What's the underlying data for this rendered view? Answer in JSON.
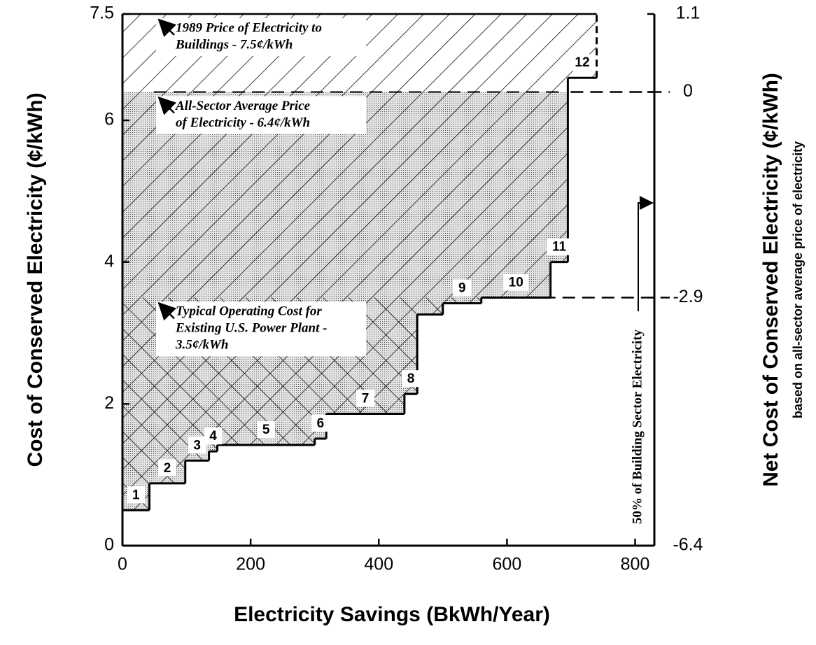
{
  "chart_data": {
    "type": "step",
    "x_label": "Electricity Savings  (BkWh/Year)",
    "y_label": "Cost of Conserved Electricity (¢/kWh)",
    "y2_label": "Net Cost of Conserved Electricity (¢/kWh)",
    "y2_subtitle": "based on all-sector average price of electricity",
    "edges": [
      0,
      42,
      98,
      135,
      148,
      300,
      318,
      440,
      460,
      500,
      560,
      668,
      695,
      740
    ],
    "values": [
      0.5,
      0.88,
      1.2,
      1.33,
      1.42,
      1.51,
      1.86,
      2.14,
      3.26,
      3.42,
      3.5,
      4.0,
      6.6
    ],
    "step_labels": [
      "1",
      "2",
      "3",
      "4",
      "5",
      "6",
      "7",
      "8",
      null,
      "9",
      "10",
      "11",
      "12"
    ],
    "color": "#000000",
    "xlim": [
      0,
      830
    ],
    "xticks": [
      0,
      200,
      400,
      600,
      800
    ],
    "ylim": [
      0,
      7.5
    ],
    "yticks": [
      0,
      2,
      4,
      6,
      7.5
    ],
    "y2lim": [
      -6.4,
      1.1
    ],
    "y2ticks": [
      -6.4,
      -2.9,
      0,
      1.1
    ],
    "reference_lines": [
      {
        "value": 7.5,
        "label_lines": [
          "1989 Price of Electricity to",
          "Buildings - 7.5¢/kWh"
        ]
      },
      {
        "value": 6.4,
        "label_lines": [
          "All-Sector Average Price",
          "of Electricity - 6.4¢/kWh"
        ]
      },
      {
        "value": 3.5,
        "label_lines": [
          "Typical Operating Cost for",
          "Existing U.S. Power Plant -",
          "3.5¢/kWh"
        ]
      }
    ],
    "annotation": "50% of Building Sector Electricity"
  }
}
